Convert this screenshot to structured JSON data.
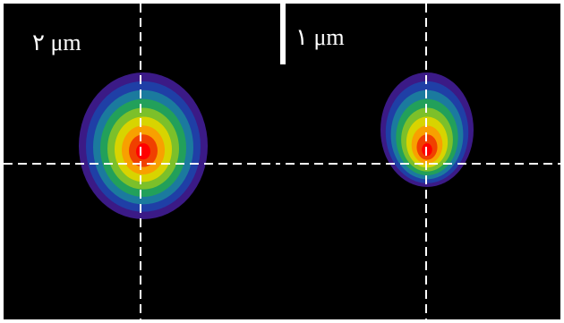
{
  "panels": [
    {
      "label": "۲ μm"
    },
    {
      "label": "۱ μm"
    }
  ]
}
